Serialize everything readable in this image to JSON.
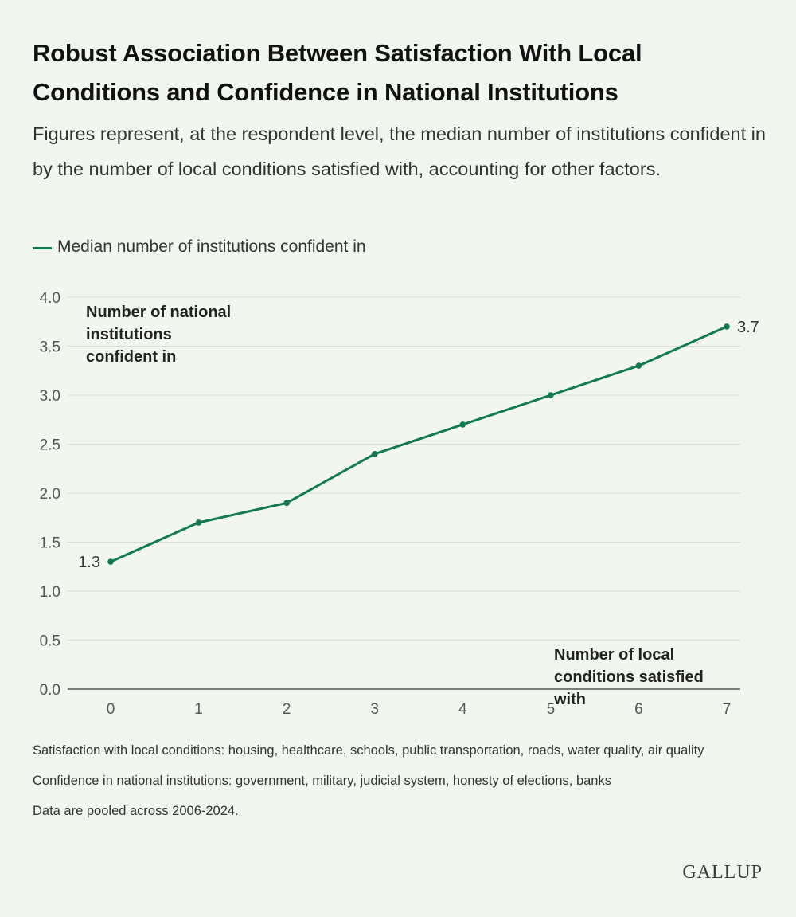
{
  "header": {
    "title": "Robust Association Between Satisfaction With Local Conditions and Confidence in National Institutions",
    "subtitle": "Figures represent, at the respondent level, the median number of institutions confident in by the number of local conditions satisfied with, accounting for other factors."
  },
  "legend": {
    "label": "Median number of institutions confident in"
  },
  "chart_data": {
    "type": "line",
    "x": [
      0,
      1,
      2,
      3,
      4,
      5,
      6,
      7
    ],
    "series": [
      {
        "name": "Median number of institutions confident in",
        "values": [
          1.3,
          1.7,
          1.9,
          2.4,
          2.7,
          3.0,
          3.3,
          3.7
        ]
      }
    ],
    "ylabel": "Number of national institutions confident in",
    "xlabel": "Number of local conditions satisfied with",
    "ylim": [
      0,
      4
    ],
    "yticks": [
      "0.0",
      "0.5",
      "1.0",
      "1.5",
      "2.0",
      "2.5",
      "3.0",
      "3.5",
      "4.0"
    ],
    "xticks": [
      "0",
      "1",
      "2",
      "3",
      "4",
      "5",
      "6",
      "7"
    ],
    "data_labels": [
      {
        "index": 0,
        "text": "1.3"
      },
      {
        "index": 7,
        "text": "3.7"
      }
    ],
    "grid": true,
    "line_color": "#137b4b"
  },
  "notes": [
    "Satisfaction with local conditions: housing, healthcare, schools, public transportation, roads, water quality, air quality",
    "Confidence in national institutions: government, military, judicial system, honesty of elections, banks",
    "Data are pooled across 2006-2024."
  ],
  "brand": "GALLUP"
}
